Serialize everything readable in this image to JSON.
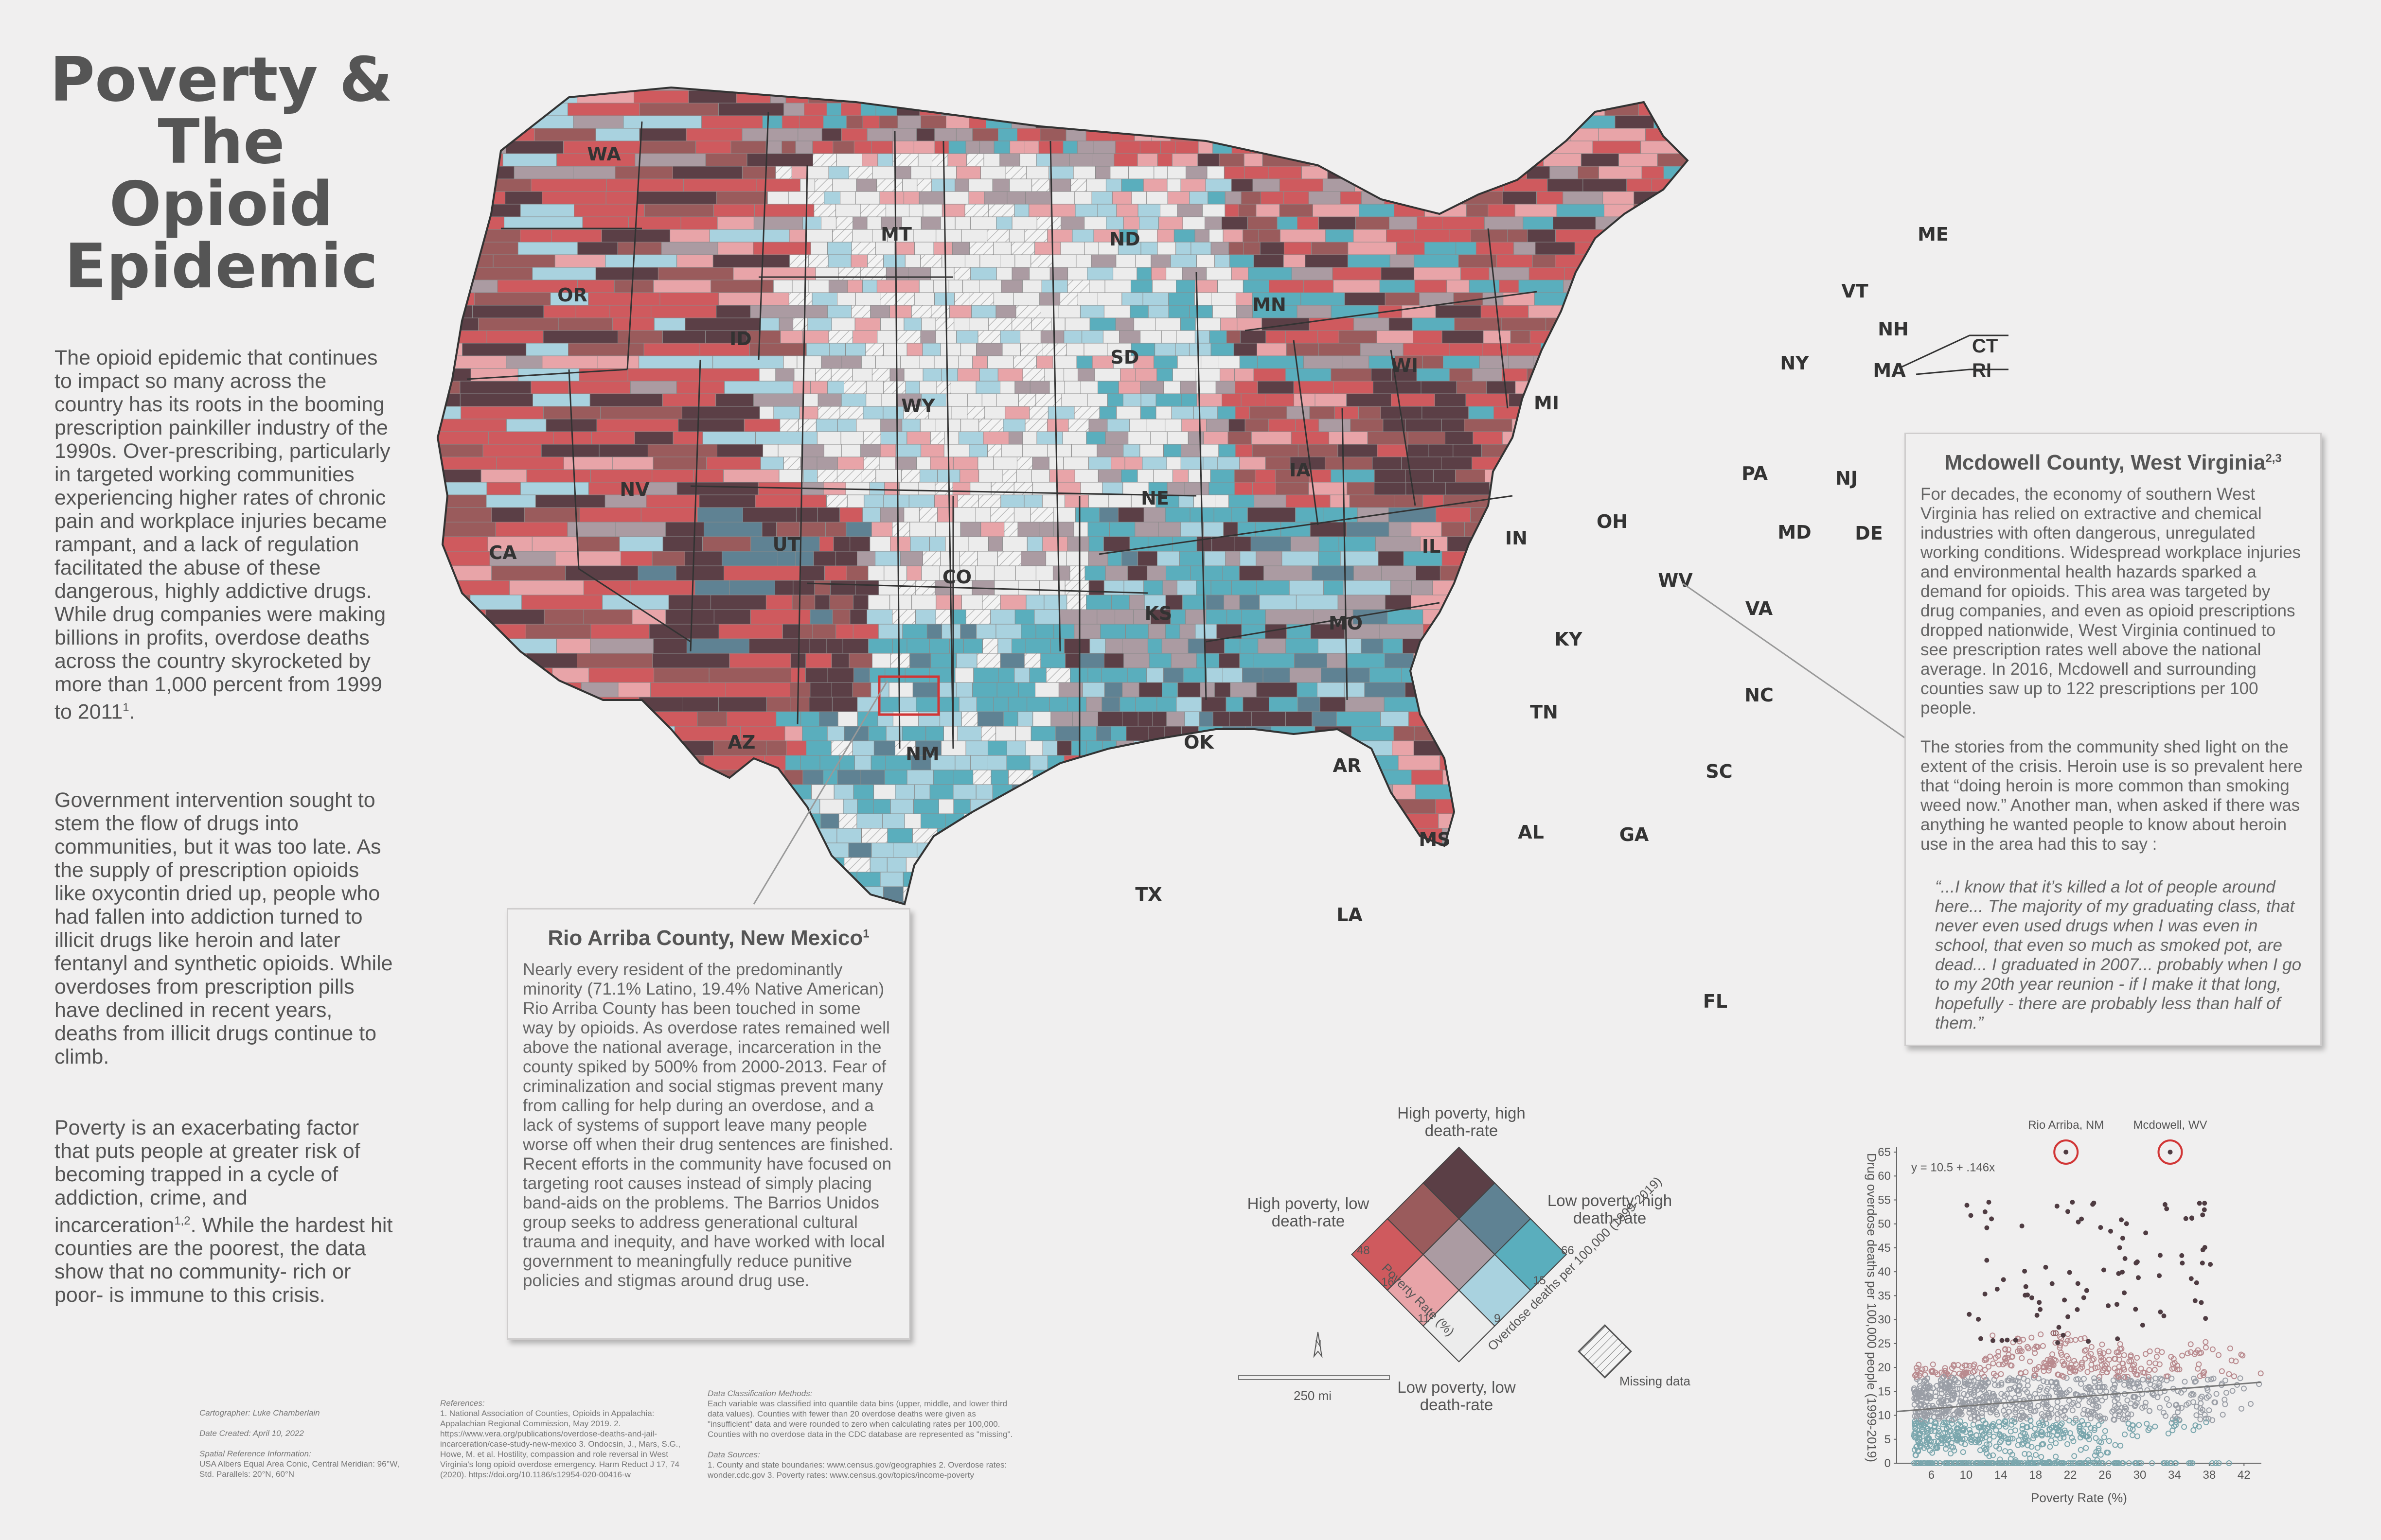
{
  "title": "Poverty & The Opioid Epidemic",
  "title_lines": [
    "Poverty &",
    "The",
    "Opioid",
    "Epidemic"
  ],
  "intro": {
    "p1": "The opioid epidemic that continues to impact so many across the country has its roots in the booming prescription painkiller industry of the 1990s. Over-prescribing, particularly in targeted working communities experiencing higher rates of chronic pain and workplace injuries became rampant, and a lack of regulation facilitated the abuse of these dangerous, highly addictive drugs. While drug companies were making billions in profits, overdose deaths across the country skyrocketed by more than 1,000 percent from 1999 to 2011",
    "p1_sup": "1",
    "p1_end": ".",
    "p2": "Government intervention sought to stem the flow of drugs into communities, but it was too late. As the supply of prescription opioids like oxycontin dried up, people who had fallen into addiction turned to illicit drugs like heroin and later fentanyl and synthetic opioids. While overdoses from prescription pills have declined in recent years, deaths from illicit drugs continue to climb.",
    "p3a": "Poverty is an exacerbating factor that puts people at greater risk of becoming trapped in a cycle of addiction, crime, and incarceration",
    "p3_sup": "1,2",
    "p3b": ". While the hardest hit counties are the poorest, the data show that no community- rich or poor- is immune to this crisis."
  },
  "states": [
    "WA",
    "OR",
    "ID",
    "MT",
    "ND",
    "SD",
    "WY",
    "NV",
    "CA",
    "UT",
    "CO",
    "AZ",
    "NM",
    "NE",
    "KS",
    "OK",
    "TX",
    "MN",
    "IA",
    "MO",
    "AR",
    "LA",
    "WI",
    "IL",
    "MS",
    "MI",
    "IN",
    "OH",
    "KY",
    "TN",
    "AL",
    "GA",
    "FL",
    "SC",
    "NC",
    "VA",
    "WV",
    "PA",
    "NY",
    "MD",
    "DE",
    "NJ",
    "VT",
    "NH",
    "MA",
    "CT",
    "RI",
    "ME"
  ],
  "rio_callout": {
    "title": "Rio Arriba County, New Mexico",
    "sup": "1",
    "body": "Nearly every resident of the predominantly minority (71.1% Latino, 19.4% Native American) Rio Arriba County has been touched in some way by opioids. As overdose rates remained well above the national average, incarceration in the county spiked by 500% from 2000-2013. Fear of criminalization and social stigmas prevent many from calling for help during an overdose, and a lack of systems of support leave many people worse off when their drug sentences are finished. Recent efforts in the community have focused on targeting root causes instead of simply placing band-aids on the problems. The Barrios Unidos group seeks to address generational cultural trauma and inequity, and have worked with local government to meaningfully reduce punitive policies and stigmas around drug use."
  },
  "mcdowell_callout": {
    "title": "Mcdowell County, West Virginia",
    "sup": "2,3",
    "body1": "For decades, the economy of southern West Virginia has relied on extractive and chemical industries with often dangerous, unregulated working conditions. Widespread workplace injuries and environmental health hazards sparked a demand for opioids. This area was targeted by drug companies, and even as opioid prescriptions dropped nationwide, West Virginia continued to see prescription rates well above the national average. In 2016, Mcdowell and surrounding counties saw up to 122 prescriptions per 100 people.",
    "body2": "The stories from the community shed light on the extent of the crisis. Heroin use is so prevalent here that “doing heroin is more common than smoking weed now.” Another man, when asked if there was anything he wanted people to know about heroin use in the area had this to say :",
    "quote": "“...I know that it’s killed a lot of people around here... The majority of my graduating class, that never even used drugs when I was even in school, that even so much as smoked pot, are dead... I graduated in 2007... probably when I go to my 20th year reunion - if I make it that long, hopefully - there are probably less than half of them.”"
  },
  "legend": {
    "top": "High poverty, high death-rate",
    "left": "High poverty, low death-rate",
    "right": "Low poverty, high death-rate",
    "bottom": "Low poverty, low death-rate",
    "poverty_axis": "Poverty Rate (%)",
    "overdose_axis": "Overdose deaths per 100,000 (1999-2019)",
    "poverty_breaks": [
      "48",
      "16",
      "11"
    ],
    "overdose_breaks": [
      "66",
      "15",
      "9"
    ],
    "missing": "Missing data",
    "colors": {
      "hh": "#5b3f46",
      "mh": "#9a5b5c",
      "lh": "#cf5a5e",
      "hm": "#5f8293",
      "mm": "#ab9ba2",
      "lm": "#e8a4a8",
      "hl": "#5aaebd",
      "ml": "#a9d2df",
      "ll": "#ececec"
    }
  },
  "scale": {
    "label": "250 mi",
    "north": "N"
  },
  "credits": {
    "cartographer": "Cartographer: Luke Chamberlain",
    "date": "Date Created: April 10, 2022",
    "spatial_h": "Spatial Reference Information:",
    "spatial": "USA Albers Equal Area Conic, Central Meridian: 96°W, Std. Parallels: 20°N, 60°N",
    "refs_h": "References:",
    "refs": "1. National Association of Counties, Opioids in Appalachia: Appalachian Regional Commission, May 2019. 2. https://www.vera.org/publications/overdose-deaths-and-jail-incarceration/case-study-new-mexico 3. Ondocsin, J., Mars, S.G., Howe, M. et al. Hostility, compassion and role reversal in West Virginia's long opioid overdose emergency. Harm Reduct J 17, 74 (2020). https://doi.org/10.1186/s12954-020-00416-w",
    "class_h": "Data Classification Methods:",
    "class": "Each variable was classified into quantile data bins (upper, middle, and lower third data values). Counties with fewer than 20 overdose deaths were given as \"insufficient\" data and were rounded to zero when calculating rates per 100,000. Counties with no overdose data in the CDC database are represented as \"missing\".",
    "src_h": "Data Sources:",
    "src": "1. County and state boundaries: www.census.gov/geographies 2. Overdose rates: wonder.cdc.gov 3. Poverty rates: www.census.gov/topics/income-poverty"
  },
  "chart_data": {
    "type": "scatter",
    "title": "",
    "xlabel": "Poverty Rate (%)",
    "ylabel": "Drug overdose deaths per 100,000 people (1999-2019)",
    "xlim": [
      2,
      44
    ],
    "ylim": [
      0,
      65
    ],
    "xticks": [
      6,
      10,
      14,
      18,
      22,
      26,
      30,
      34,
      38,
      42
    ],
    "yticks": [
      0,
      5,
      10,
      15,
      20,
      25,
      30,
      35,
      40,
      45,
      50,
      55,
      60,
      65
    ],
    "equation": "y = 10.5 + .146x",
    "trend": {
      "intercept": 10.5,
      "slope": 0.146
    },
    "highlights": [
      {
        "label": "Rio Arriba, NM",
        "x": 21.5,
        "y": 65
      },
      {
        "label": "Mcdowell, WV",
        "x": 33.5,
        "y": 65
      }
    ],
    "grid": false,
    "legend": "none"
  }
}
